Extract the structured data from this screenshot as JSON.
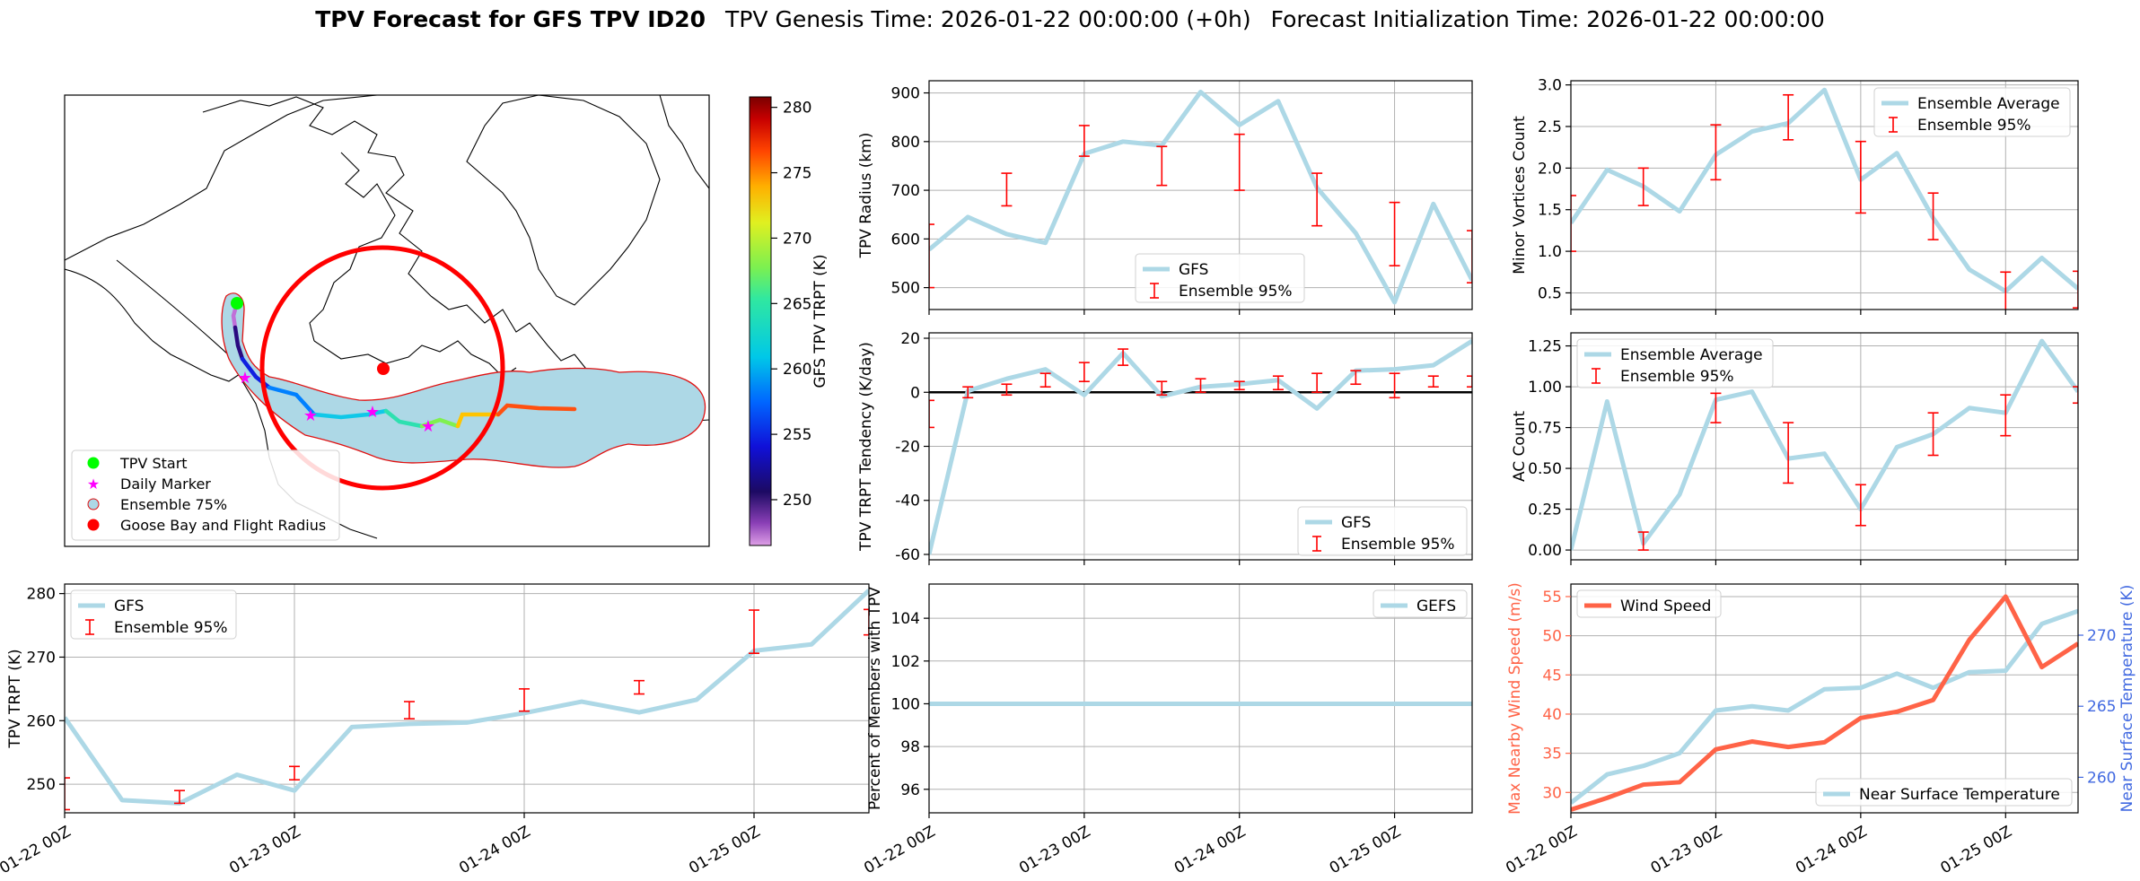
{
  "suptitle": {
    "bold": "TPV Forecast for GFS TPV ID20",
    "genesis": "TPV Genesis Time: 2026-01-22 00:00:00 (+0h)",
    "init": "Forecast Initialization Time: 2026-01-22 00:00:00"
  },
  "colors": {
    "gfs": "#add8e6",
    "error": "#ff0000",
    "wind": "#ff6347",
    "temp_axis": "#4169e1",
    "wind_axis": "#ff6347",
    "grid": "#b0b0b0",
    "ensemble_fill": "#add8e6",
    "flight_radius": "#ff0000"
  },
  "time_axis": {
    "ticks": [
      0,
      24,
      48,
      72
    ],
    "tick_labels": [
      "01-22 00Z",
      "01-23 00Z",
      "01-24 00Z",
      "01-25 00Z"
    ]
  },
  "map": {
    "colorbar": {
      "label": "GFS TPV TRPT (K)",
      "ticks": [
        250,
        255,
        260,
        265,
        270,
        275,
        280
      ],
      "min": 246.5,
      "max": 280.8
    },
    "legend": [
      "TPV Start",
      "Daily Marker",
      "Ensemble 75%",
      "Goose Bay and Flight Radius"
    ]
  },
  "chart_data": [
    {
      "id": "radius",
      "type": "line",
      "ylabel": "TPV Radius (km)",
      "ylim": [
        455,
        925
      ],
      "yticks": [
        500,
        600,
        700,
        800,
        900
      ],
      "xlim": [
        0,
        84
      ],
      "legend": [
        "GFS",
        "Ensemble 95%"
      ],
      "legend_position": "lower-center",
      "series": [
        {
          "name": "GFS",
          "x": [
            0,
            6,
            12,
            18,
            24,
            30,
            36,
            42,
            48,
            54,
            60,
            66,
            72,
            78,
            84
          ],
          "y": [
            578,
            645,
            610,
            592,
            775,
            800,
            792,
            902,
            834,
            883,
            705,
            612,
            470,
            672,
            515
          ]
        }
      ],
      "errorbars": [
        {
          "x": 0,
          "low": 500,
          "high": 630
        },
        {
          "x": 12,
          "low": 668,
          "high": 735
        },
        {
          "x": 24,
          "low": 770,
          "high": 833
        },
        {
          "x": 36,
          "low": 710,
          "high": 790
        },
        {
          "x": 48,
          "low": 700,
          "high": 815
        },
        {
          "x": 60,
          "low": 627,
          "high": 735
        },
        {
          "x": 72,
          "low": 545,
          "high": 675
        },
        {
          "x": 84,
          "low": 510,
          "high": 617
        }
      ]
    },
    {
      "id": "minor",
      "type": "line",
      "ylabel": "Minor Vortices Count",
      "ylim": [
        0.3,
        3.05
      ],
      "yticks": [
        0.5,
        1.0,
        1.5,
        2.0,
        2.5,
        3.0
      ],
      "ytick_labels": [
        "0.5",
        "1.0",
        "1.5",
        "2.0",
        "2.5",
        "3.0"
      ],
      "xlim": [
        0,
        84
      ],
      "legend": [
        "Ensemble Average",
        "Ensemble 95%"
      ],
      "legend_position": "top-right",
      "series": [
        {
          "name": "Ensemble Average",
          "x": [
            0,
            6,
            12,
            18,
            24,
            30,
            36,
            42,
            48,
            54,
            60,
            66,
            72,
            78,
            84
          ],
          "y": [
            1.34,
            1.98,
            1.78,
            1.48,
            2.16,
            2.44,
            2.54,
            2.94,
            1.86,
            2.18,
            1.4,
            0.78,
            0.52,
            0.92,
            0.55
          ]
        }
      ],
      "errorbars": [
        {
          "x": 0,
          "low": 1.0,
          "high": 1.67
        },
        {
          "x": 12,
          "low": 1.55,
          "high": 2.0
        },
        {
          "x": 24,
          "low": 1.86,
          "high": 2.52
        },
        {
          "x": 36,
          "low": 2.34,
          "high": 2.88
        },
        {
          "x": 48,
          "low": 1.46,
          "high": 2.32
        },
        {
          "x": 60,
          "low": 1.14,
          "high": 1.7
        },
        {
          "x": 72,
          "low": 0.28,
          "high": 0.75
        },
        {
          "x": 84,
          "low": 0.32,
          "high": 0.76
        }
      ]
    },
    {
      "id": "tendency",
      "type": "line",
      "ylabel": "TPV TRPT Tendency (K/day)",
      "ylim": [
        -62,
        22
      ],
      "yticks": [
        -60,
        -40,
        -20,
        0,
        20
      ],
      "xlim": [
        0,
        84
      ],
      "zero_line": true,
      "legend": [
        "GFS",
        "Ensemble 95%"
      ],
      "legend_position": "lower-right",
      "series": [
        {
          "name": "GFS",
          "x": [
            0,
            6,
            12,
            18,
            24,
            30,
            36,
            42,
            48,
            54,
            60,
            66,
            72,
            78,
            84
          ],
          "y": [
            -60,
            0.5,
            5.0,
            8.5,
            -1.0,
            14.5,
            -1.5,
            2.0,
            3.0,
            4.5,
            -6.0,
            8.0,
            8.5,
            10.0,
            19.0
          ]
        }
      ],
      "errorbars": [
        {
          "x": 0,
          "low": -13,
          "high": -3
        },
        {
          "x": 6,
          "low": -2,
          "high": 2
        },
        {
          "x": 12,
          "low": -1,
          "high": 3
        },
        {
          "x": 18,
          "low": 2,
          "high": 7
        },
        {
          "x": 24,
          "low": 4,
          "high": 11
        },
        {
          "x": 30,
          "low": 10,
          "high": 16
        },
        {
          "x": 36,
          "low": -1,
          "high": 4
        },
        {
          "x": 42,
          "low": 0,
          "high": 5
        },
        {
          "x": 48,
          "low": 1,
          "high": 4
        },
        {
          "x": 54,
          "low": 1,
          "high": 6
        },
        {
          "x": 60,
          "low": 0,
          "high": 7
        },
        {
          "x": 66,
          "low": 3,
          "high": 8
        },
        {
          "x": 72,
          "low": -2,
          "high": 7
        },
        {
          "x": 78,
          "low": 2,
          "high": 6
        },
        {
          "x": 84,
          "low": 2,
          "high": 6
        }
      ]
    },
    {
      "id": "ac",
      "type": "line",
      "ylabel": "AC Count",
      "ylim": [
        -0.06,
        1.33
      ],
      "yticks": [
        0,
        0.25,
        0.5,
        0.75,
        1.0,
        1.25
      ],
      "ytick_labels": [
        "0.00",
        "0.25",
        "0.50",
        "0.75",
        "1.00",
        "1.25"
      ],
      "xlim": [
        0,
        84
      ],
      "legend": [
        "Ensemble Average",
        "Ensemble 95%"
      ],
      "legend_position": "top-left",
      "series": [
        {
          "name": "Ensemble Average",
          "x": [
            0,
            6,
            12,
            18,
            24,
            30,
            36,
            42,
            48,
            54,
            60,
            66,
            72,
            78,
            84
          ],
          "y": [
            0.0,
            0.91,
            0.04,
            0.34,
            0.92,
            0.97,
            0.56,
            0.59,
            0.25,
            0.63,
            0.71,
            0.87,
            0.84,
            1.28,
            0.97
          ]
        }
      ],
      "errorbars": [
        {
          "x": 12,
          "low": 0.0,
          "high": 0.11
        },
        {
          "x": 24,
          "low": 0.78,
          "high": 0.96
        },
        {
          "x": 36,
          "low": 0.41,
          "high": 0.78
        },
        {
          "x": 48,
          "low": 0.15,
          "high": 0.4
        },
        {
          "x": 60,
          "low": 0.58,
          "high": 0.84
        },
        {
          "x": 72,
          "low": 0.7,
          "high": 0.95
        },
        {
          "x": 84,
          "low": 0.9,
          "high": 1.0
        }
      ]
    },
    {
      "id": "trpt",
      "type": "line",
      "ylabel": "TPV TRPT (K)",
      "ylim": [
        245.5,
        281.5
      ],
      "yticks": [
        250,
        260,
        270,
        280
      ],
      "xlim": [
        0,
        84
      ],
      "legend": [
        "GFS",
        "Ensemble 95%"
      ],
      "legend_position": "top-left",
      "series": [
        {
          "name": "GFS",
          "x": [
            0,
            6,
            12,
            18,
            24,
            30,
            36,
            42,
            48,
            54,
            60,
            66,
            72,
            78,
            84
          ],
          "y": [
            260.5,
            247.5,
            247.0,
            251.5,
            249.0,
            259.0,
            259.5,
            259.7,
            261.2,
            263.0,
            261.3,
            263.3,
            271.0,
            272.0,
            280.5
          ]
        }
      ],
      "errorbars": [
        {
          "x": 0,
          "low": 246.0,
          "high": 251.0
        },
        {
          "x": 12,
          "low": 247.0,
          "high": 249.0
        },
        {
          "x": 24,
          "low": 250.7,
          "high": 252.8
        },
        {
          "x": 36,
          "low": 260.3,
          "high": 263.0
        },
        {
          "x": 48,
          "low": 261.5,
          "high": 265.0
        },
        {
          "x": 60,
          "low": 264.2,
          "high": 266.3
        },
        {
          "x": 72,
          "low": 270.6,
          "high": 277.4
        },
        {
          "x": 84,
          "low": 273.5,
          "high": 277.5
        }
      ]
    },
    {
      "id": "percent",
      "type": "line",
      "ylabel": "Percent of Members with TPV",
      "ylim": [
        94.9,
        105.6
      ],
      "yticks": [
        96,
        98,
        100,
        102,
        104
      ],
      "xlim": [
        0,
        84
      ],
      "legend": [
        "GEFS"
      ],
      "legend_position": "top-right",
      "series": [
        {
          "name": "GEFS",
          "x": [
            0,
            84
          ],
          "y": [
            100,
            100
          ]
        }
      ]
    },
    {
      "id": "wind",
      "type": "line",
      "ylabel": "Max Nearby Wind Speed (m/s)",
      "ylabel2": "Near Surface Temperature (K)",
      "ylim": [
        27.4,
        56.6
      ],
      "yticks": [
        30,
        35,
        40,
        45,
        50,
        55
      ],
      "ylim2": [
        257.5,
        273.6
      ],
      "yticks2": [
        260,
        265,
        270
      ],
      "xlim": [
        0,
        84
      ],
      "legend_left": [
        "Wind Speed"
      ],
      "legend_right": [
        "Near Surface Temperature"
      ],
      "series": [
        {
          "name": "Wind Speed",
          "axis": "left",
          "x": [
            0,
            6,
            12,
            18,
            24,
            30,
            36,
            42,
            48,
            54,
            60,
            66,
            72,
            78,
            84
          ],
          "y": [
            27.8,
            29.3,
            31.0,
            31.3,
            35.5,
            36.5,
            35.8,
            36.4,
            39.5,
            40.3,
            41.8,
            49.5,
            55.0,
            46.0,
            49.0
          ]
        },
        {
          "name": "Near Surface Temperature",
          "axis": "right",
          "x": [
            0,
            6,
            12,
            18,
            24,
            30,
            36,
            42,
            48,
            54,
            60,
            66,
            72,
            78,
            84
          ],
          "y": [
            258.2,
            260.2,
            260.8,
            261.7,
            264.7,
            265.0,
            264.7,
            266.2,
            266.3,
            267.3,
            266.3,
            267.4,
            267.5,
            270.8,
            271.7
          ]
        }
      ]
    }
  ]
}
